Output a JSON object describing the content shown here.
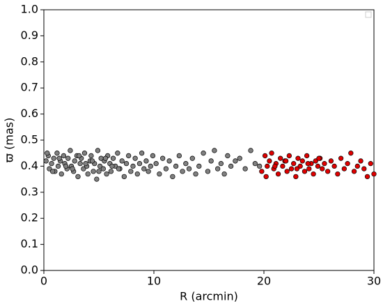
{
  "chart_data": {
    "type": "scatter",
    "xlabel": "R (arcmin)",
    "ylabel": "ϖ (mas)",
    "xlim": [
      0,
      30
    ],
    "ylim": [
      0,
      1
    ],
    "xticks": [
      0,
      10,
      20,
      30
    ],
    "yticks": [
      {
        "value": 0,
        "label": "0.0"
      },
      0.1,
      0.2,
      0.3,
      0.4,
      0.5,
      0.6,
      0.7,
      0.8,
      0.9,
      {
        "value": 1,
        "label": "1.0"
      }
    ],
    "series": [
      {
        "color": "#808080",
        "x": [
          0.2,
          0.4,
          0.5,
          0.7,
          0.9,
          1.0,
          1.2,
          1.3,
          1.5,
          1.6,
          1.8,
          1.9,
          2.1,
          2.2,
          2.4,
          2.5,
          2.7,
          2.8,
          3.0,
          3.1,
          3.3,
          3.4,
          3.6,
          3.7,
          3.9,
          4.0,
          4.2,
          4.3,
          4.5,
          4.6,
          4.8,
          4.9,
          5.1,
          5.2,
          5.4,
          5.5,
          5.7,
          5.8,
          6.0,
          6.1,
          6.3,
          6.5,
          6.7,
          6.9,
          7.1,
          7.3,
          7.5,
          7.7,
          7.9,
          8.1,
          8.3,
          8.5,
          8.7,
          8.9,
          9.1,
          9.3,
          9.5,
          9.7,
          9.9,
          10.2,
          10.5,
          10.8,
          11.1,
          11.4,
          11.7,
          12.0,
          12.3,
          12.6,
          12.9,
          13.2,
          13.5,
          13.8,
          14.1,
          14.5,
          14.9,
          15.2,
          15.5,
          15.8,
          16.1,
          16.4,
          16.7,
          17.0,
          17.4,
          17.8,
          18.3,
          18.8,
          19.2,
          19.6,
          0.3,
          0.8,
          1.4,
          2.0,
          2.6,
          3.2,
          3.8,
          4.4,
          5.0,
          5.6,
          6.2,
          6.8
        ],
        "values": [
          0.42,
          0.44,
          0.39,
          0.41,
          0.43,
          0.38,
          0.45,
          0.4,
          0.42,
          0.37,
          0.44,
          0.41,
          0.39,
          0.43,
          0.46,
          0.4,
          0.38,
          0.42,
          0.44,
          0.36,
          0.41,
          0.43,
          0.39,
          0.45,
          0.4,
          0.37,
          0.42,
          0.44,
          0.38,
          0.41,
          0.35,
          0.46,
          0.4,
          0.43,
          0.39,
          0.42,
          0.37,
          0.44,
          0.41,
          0.38,
          0.43,
          0.4,
          0.45,
          0.39,
          0.42,
          0.36,
          0.41,
          0.44,
          0.38,
          0.4,
          0.43,
          0.37,
          0.41,
          0.45,
          0.39,
          0.42,
          0.38,
          0.4,
          0.44,
          0.41,
          0.37,
          0.43,
          0.39,
          0.42,
          0.36,
          0.4,
          0.44,
          0.38,
          0.41,
          0.39,
          0.43,
          0.37,
          0.4,
          0.45,
          0.38,
          0.42,
          0.46,
          0.39,
          0.41,
          0.37,
          0.44,
          0.4,
          0.42,
          0.43,
          0.39,
          0.46,
          0.41,
          0.4,
          0.45,
          0.38,
          0.43,
          0.4,
          0.39,
          0.44,
          0.41,
          0.42,
          0.38,
          0.43,
          0.4,
          0.39
        ]
      },
      {
        "color": "#e00000",
        "x": [
          19.8,
          20.1,
          20.3,
          20.5,
          20.7,
          20.9,
          21.1,
          21.3,
          21.5,
          21.7,
          21.9,
          22.1,
          22.3,
          22.5,
          22.7,
          22.9,
          23.1,
          23.3,
          23.5,
          23.7,
          23.9,
          24.1,
          24.3,
          24.5,
          24.7,
          24.9,
          25.1,
          25.3,
          25.5,
          25.8,
          26.1,
          26.4,
          26.7,
          27.0,
          27.3,
          27.6,
          27.9,
          28.2,
          28.5,
          28.8,
          29.1,
          29.4,
          29.7,
          30.0,
          20.2,
          21.0,
          22.0,
          23.0,
          24.0,
          25.0
        ],
        "values": [
          0.38,
          0.44,
          0.4,
          0.42,
          0.45,
          0.39,
          0.41,
          0.37,
          0.43,
          0.4,
          0.42,
          0.38,
          0.44,
          0.39,
          0.41,
          0.36,
          0.43,
          0.4,
          0.42,
          0.38,
          0.44,
          0.39,
          0.41,
          0.37,
          0.42,
          0.4,
          0.43,
          0.39,
          0.41,
          0.38,
          0.42,
          0.4,
          0.37,
          0.43,
          0.39,
          0.41,
          0.45,
          0.38,
          0.4,
          0.42,
          0.39,
          0.36,
          0.41,
          0.37,
          0.36,
          0.4,
          0.42,
          0.39,
          0.41,
          0.43
        ]
      }
    ]
  }
}
